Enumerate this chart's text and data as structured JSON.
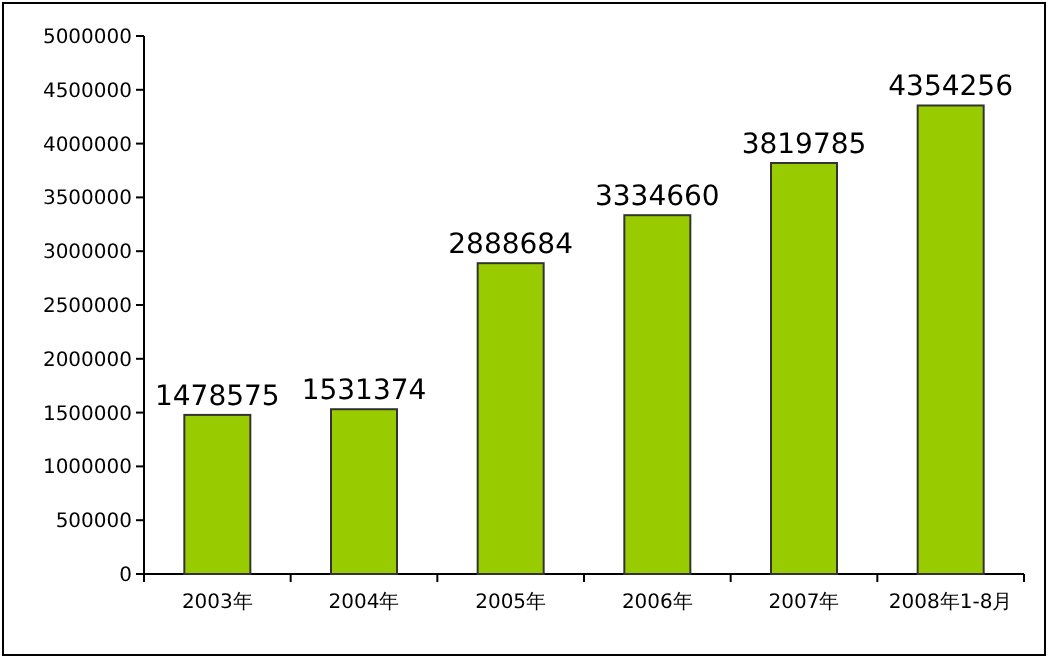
{
  "chart_data": {
    "type": "bar",
    "categories": [
      "2003年",
      "2004年",
      "2005年",
      "2006年",
      "2007年",
      "2008年1-8月"
    ],
    "values": [
      1478575,
      1531374,
      2888684,
      3334660,
      3819785,
      4354256
    ],
    "color": "#99cc00",
    "data_labels": true,
    "ylim": [
      0,
      5000000
    ],
    "yticks": [
      0,
      500000,
      1000000,
      1500000,
      2000000,
      2500000,
      3000000,
      3500000,
      4000000,
      4500000,
      5000000
    ]
  }
}
